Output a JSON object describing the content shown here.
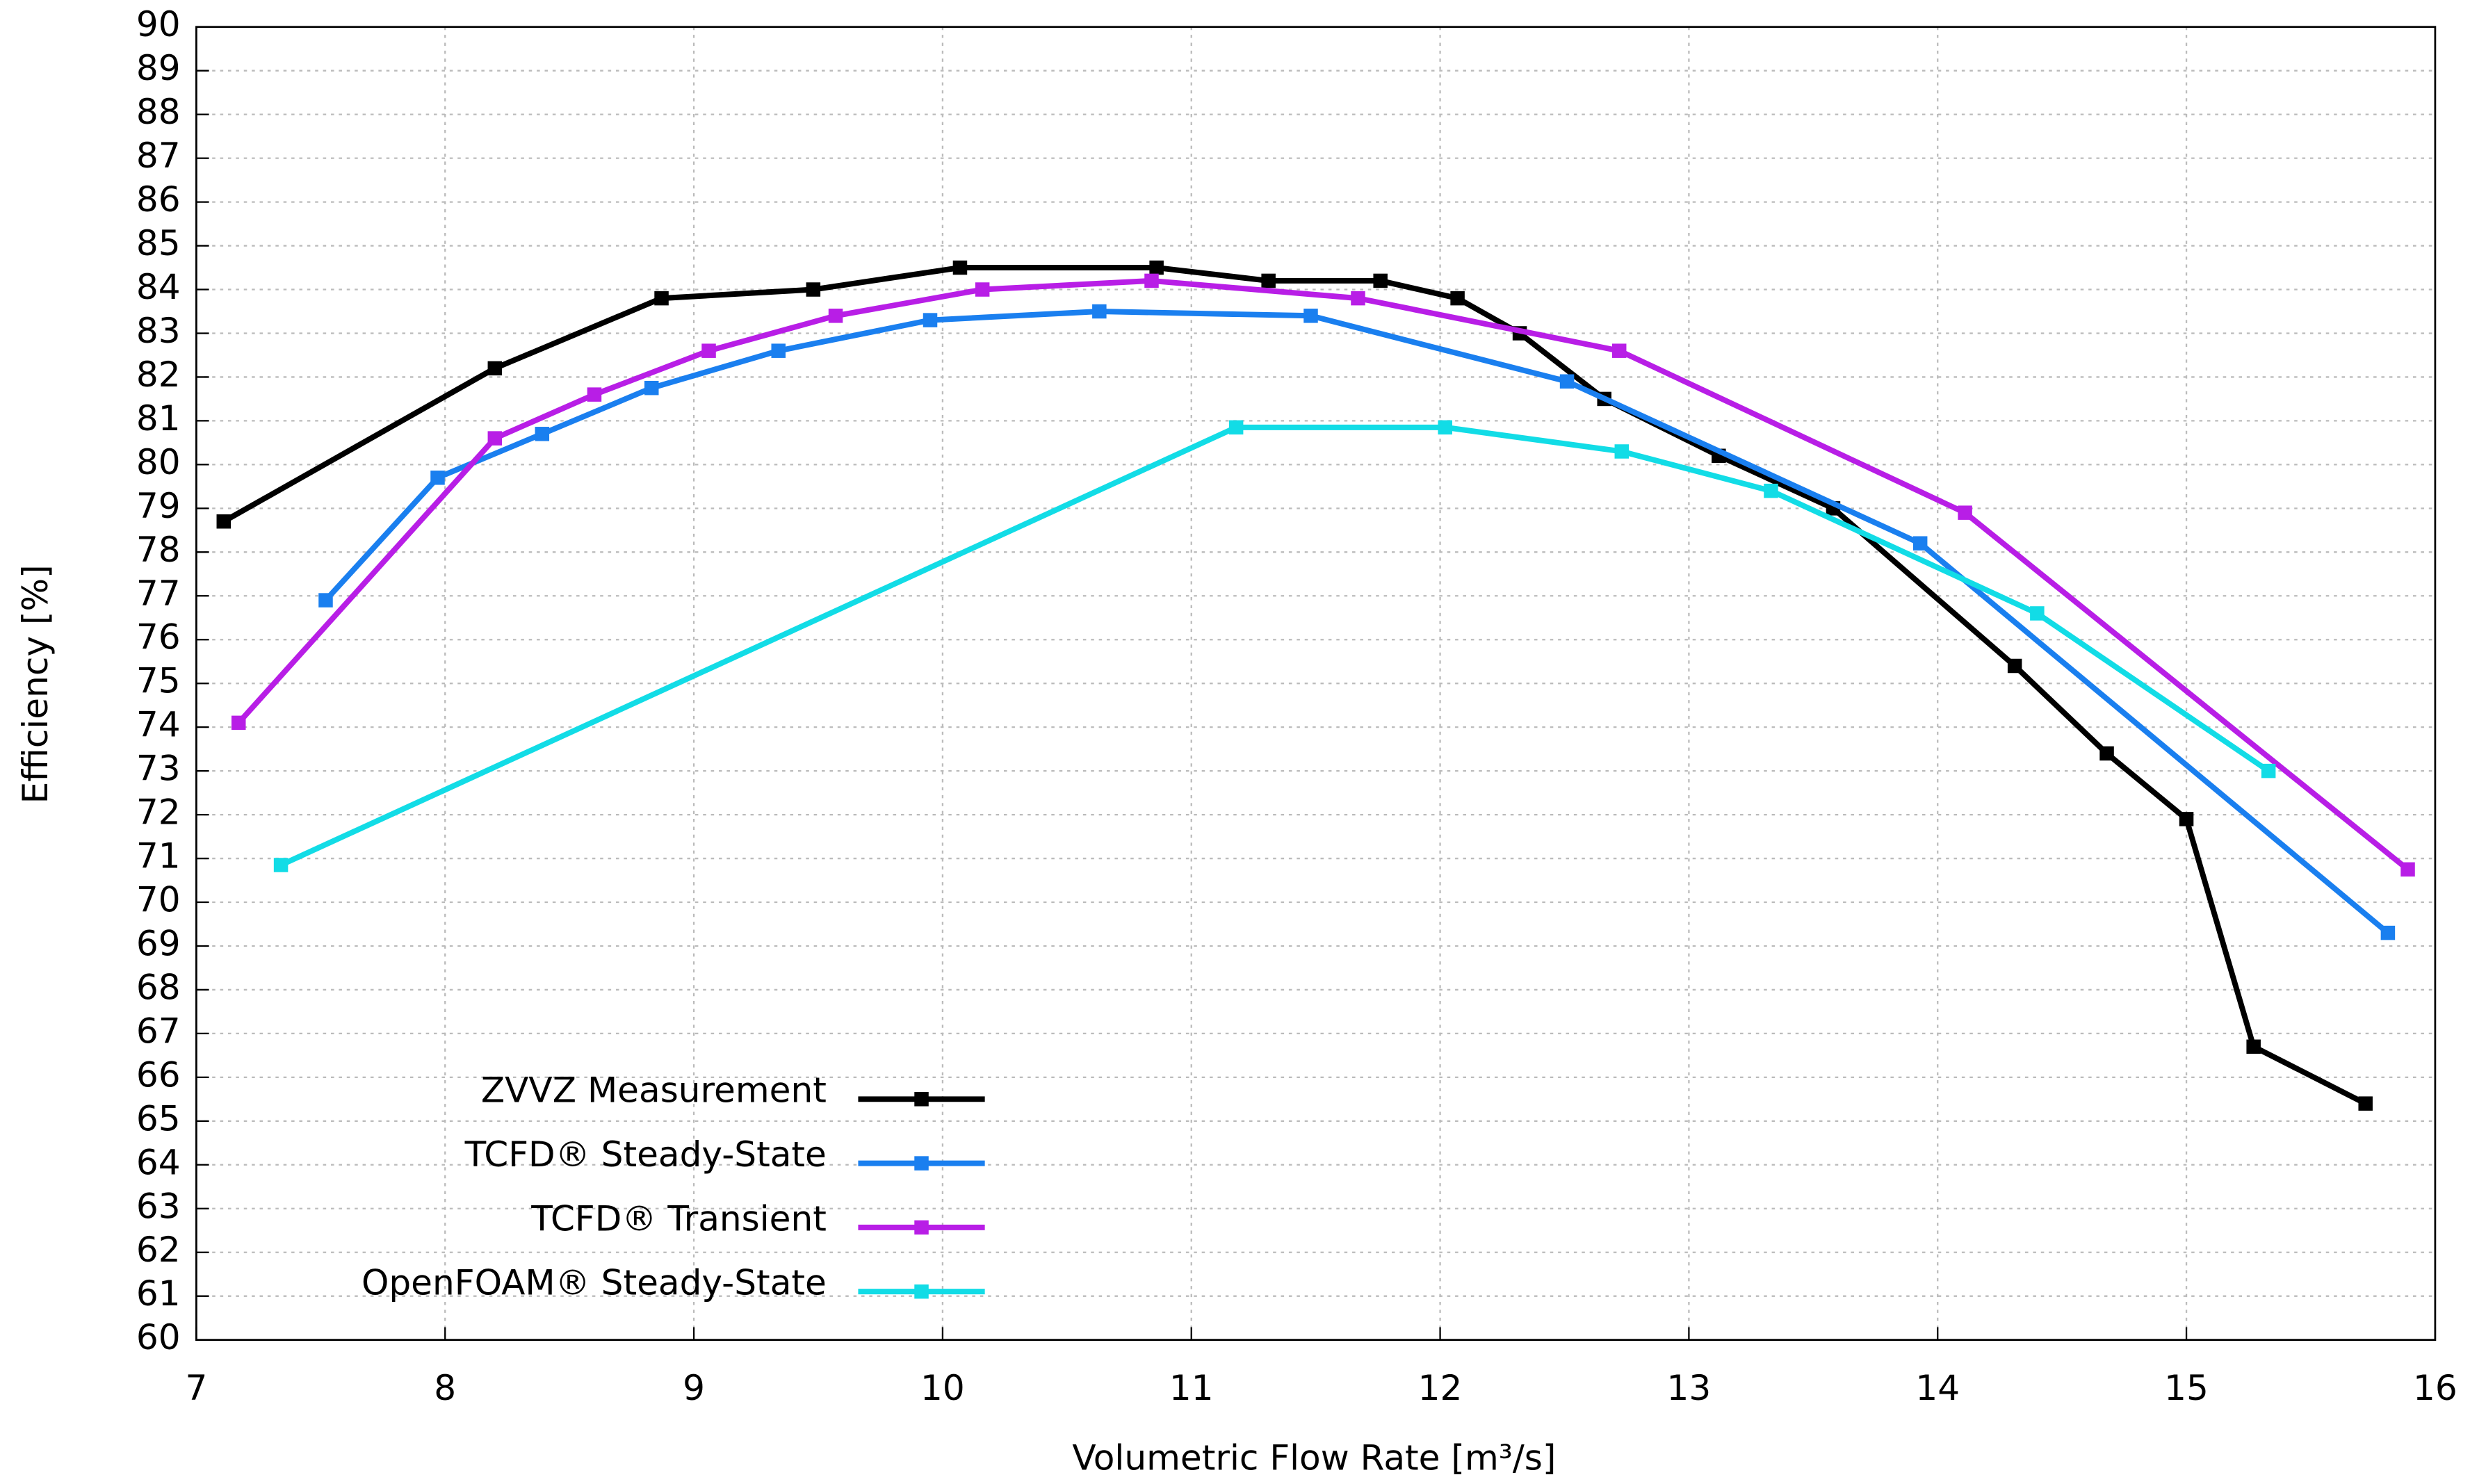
{
  "chart_data": {
    "type": "line",
    "x_label": "Volumetric Flow Rate [m³/s]",
    "y_label": "Efficiency [%]",
    "xlim": [
      7,
      16
    ],
    "xticks": [
      7,
      8,
      9,
      10,
      11,
      12,
      13,
      14,
      15,
      16
    ],
    "ylim": [
      60,
      90
    ],
    "yticks": [
      60,
      61,
      62,
      63,
      64,
      65,
      66,
      67,
      68,
      69,
      70,
      71,
      72,
      73,
      74,
      75,
      76,
      77,
      78,
      79,
      80,
      81,
      82,
      83,
      84,
      85,
      86,
      87,
      88,
      89,
      90
    ],
    "grid": true,
    "legend": "lower left",
    "series": [
      {
        "name": "ZVVZ Measurement",
        "color": "#000000",
        "x": [
          7.11,
          8.2,
          8.87,
          9.48,
          10.07,
          10.86,
          11.31,
          11.76,
          12.07,
          12.32,
          12.66,
          13.12,
          13.58,
          14.31,
          14.68,
          15.0,
          15.27,
          15.72
        ],
        "values": [
          78.7,
          82.2,
          83.8,
          84.0,
          84.5,
          84.5,
          84.2,
          84.2,
          83.8,
          83.0,
          81.5,
          80.2,
          79.0,
          75.4,
          73.4,
          71.9,
          66.7,
          65.4
        ]
      },
      {
        "name": "TCFD® Steady-State",
        "color": "#1a7fef",
        "x": [
          7.52,
          7.97,
          8.39,
          8.83,
          9.34,
          9.95,
          10.63,
          11.48,
          12.51,
          13.93,
          15.81
        ],
        "values": [
          76.9,
          79.7,
          80.7,
          81.75,
          82.6,
          83.3,
          83.5,
          83.4,
          81.9,
          78.2,
          69.3
        ]
      },
      {
        "name": "TCFD® Transient",
        "color": "#b81ee6",
        "x": [
          7.17,
          8.2,
          8.6,
          9.06,
          9.57,
          10.16,
          10.84,
          11.67,
          12.72,
          14.11,
          15.89
        ],
        "values": [
          74.1,
          80.6,
          81.6,
          82.6,
          83.4,
          84.0,
          84.2,
          83.8,
          82.6,
          78.9,
          70.75
        ]
      },
      {
        "name": "OpenFOAM® Steady-State",
        "color": "#12dce6",
        "x": [
          7.34,
          11.18,
          12.02,
          12.73,
          13.33,
          14.4,
          15.33
        ],
        "values": [
          70.85,
          80.85,
          80.85,
          80.3,
          79.4,
          76.6,
          73.0
        ]
      }
    ]
  }
}
